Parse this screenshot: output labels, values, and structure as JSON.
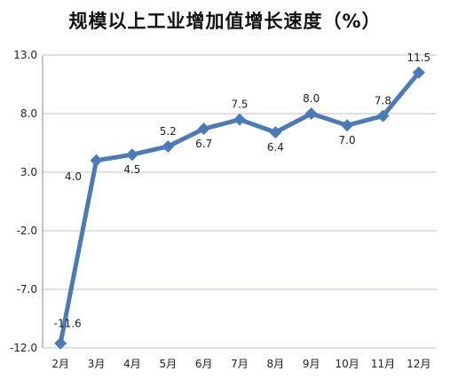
{
  "chart_data": {
    "type": "line",
    "title": "规模以上工业增加值增长速度（%）",
    "categories": [
      "2月",
      "3月",
      "4月",
      "5月",
      "6月",
      "7月",
      "8月",
      "9月",
      "10月",
      "11月",
      "12月"
    ],
    "series": [
      {
        "values": [
          -11.6,
          4.0,
          4.5,
          5.2,
          6.7,
          7.5,
          6.4,
          8.0,
          7.0,
          7.8,
          11.5
        ],
        "labels": [
          "-11.6",
          "4.0",
          "4.5",
          "5.2",
          "6.7",
          "7.5",
          "6.4",
          "8.0",
          "7.0",
          "7.8",
          "11.5"
        ],
        "label_pos": [
          "above",
          "below",
          "below",
          "above",
          "below",
          "above",
          "below",
          "above",
          "below",
          "above",
          "above"
        ],
        "color": "#4a7ab8"
      }
    ],
    "ylim": [
      -12.0,
      13.0
    ],
    "yticks": [
      13.0,
      8.0,
      3.0,
      -2.0,
      -7.0,
      -12.0
    ],
    "ytick_labels": [
      "13.0",
      "8.0",
      "3.0",
      "-2.0",
      "-7.0",
      "-12.0"
    ],
    "xlabel": "",
    "ylabel": "",
    "grid": true,
    "gridline_color": "#b8c3dd",
    "marker": "diamond"
  }
}
